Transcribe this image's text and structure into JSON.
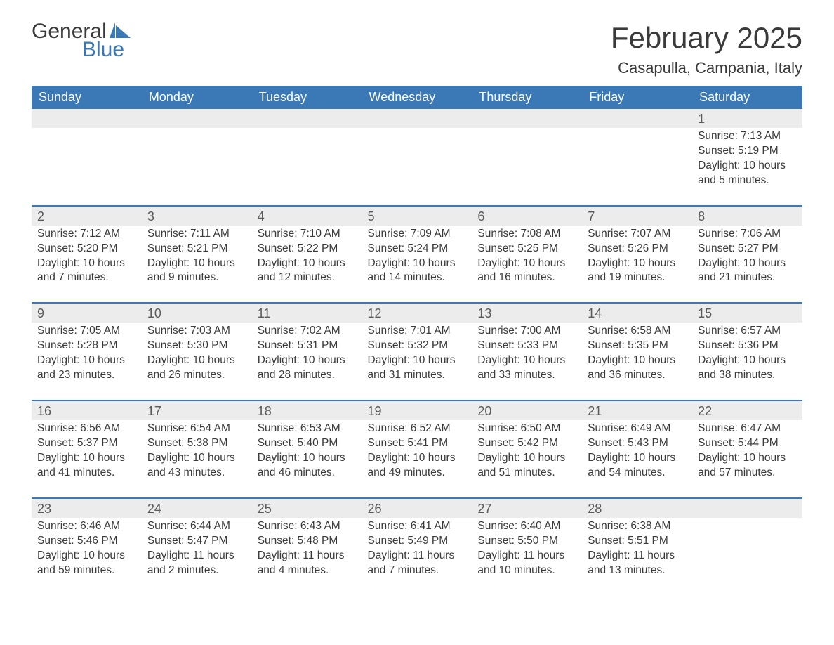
{
  "logo": {
    "general": "General",
    "blue": "Blue"
  },
  "title": "February 2025",
  "location": "Casapulla, Campania, Italy",
  "colors": {
    "header_bg": "#3a78b6",
    "header_text": "#ffffff",
    "daynum_bg": "#ececec",
    "week_border": "#3a78b6",
    "text": "#3a3a3a",
    "logo_blue": "#3a78b6"
  },
  "layout": {
    "cols": 7,
    "header_font_size": 18,
    "daynum_font_size": 18,
    "detail_font_size": 15.5,
    "title_font_size": 42,
    "location_font_size": 22
  },
  "weekdays": [
    "Sunday",
    "Monday",
    "Tuesday",
    "Wednesday",
    "Thursday",
    "Friday",
    "Saturday"
  ],
  "weeks": [
    {
      "days": [
        null,
        null,
        null,
        null,
        null,
        null,
        {
          "n": "1",
          "sunrise": "Sunrise: 7:13 AM",
          "sunset": "Sunset: 5:19 PM",
          "daylight": "Daylight: 10 hours and 5 minutes."
        }
      ]
    },
    {
      "days": [
        {
          "n": "2",
          "sunrise": "Sunrise: 7:12 AM",
          "sunset": "Sunset: 5:20 PM",
          "daylight": "Daylight: 10 hours and 7 minutes."
        },
        {
          "n": "3",
          "sunrise": "Sunrise: 7:11 AM",
          "sunset": "Sunset: 5:21 PM",
          "daylight": "Daylight: 10 hours and 9 minutes."
        },
        {
          "n": "4",
          "sunrise": "Sunrise: 7:10 AM",
          "sunset": "Sunset: 5:22 PM",
          "daylight": "Daylight: 10 hours and 12 minutes."
        },
        {
          "n": "5",
          "sunrise": "Sunrise: 7:09 AM",
          "sunset": "Sunset: 5:24 PM",
          "daylight": "Daylight: 10 hours and 14 minutes."
        },
        {
          "n": "6",
          "sunrise": "Sunrise: 7:08 AM",
          "sunset": "Sunset: 5:25 PM",
          "daylight": "Daylight: 10 hours and 16 minutes."
        },
        {
          "n": "7",
          "sunrise": "Sunrise: 7:07 AM",
          "sunset": "Sunset: 5:26 PM",
          "daylight": "Daylight: 10 hours and 19 minutes."
        },
        {
          "n": "8",
          "sunrise": "Sunrise: 7:06 AM",
          "sunset": "Sunset: 5:27 PM",
          "daylight": "Daylight: 10 hours and 21 minutes."
        }
      ]
    },
    {
      "days": [
        {
          "n": "9",
          "sunrise": "Sunrise: 7:05 AM",
          "sunset": "Sunset: 5:28 PM",
          "daylight": "Daylight: 10 hours and 23 minutes."
        },
        {
          "n": "10",
          "sunrise": "Sunrise: 7:03 AM",
          "sunset": "Sunset: 5:30 PM",
          "daylight": "Daylight: 10 hours and 26 minutes."
        },
        {
          "n": "11",
          "sunrise": "Sunrise: 7:02 AM",
          "sunset": "Sunset: 5:31 PM",
          "daylight": "Daylight: 10 hours and 28 minutes."
        },
        {
          "n": "12",
          "sunrise": "Sunrise: 7:01 AM",
          "sunset": "Sunset: 5:32 PM",
          "daylight": "Daylight: 10 hours and 31 minutes."
        },
        {
          "n": "13",
          "sunrise": "Sunrise: 7:00 AM",
          "sunset": "Sunset: 5:33 PM",
          "daylight": "Daylight: 10 hours and 33 minutes."
        },
        {
          "n": "14",
          "sunrise": "Sunrise: 6:58 AM",
          "sunset": "Sunset: 5:35 PM",
          "daylight": "Daylight: 10 hours and 36 minutes."
        },
        {
          "n": "15",
          "sunrise": "Sunrise: 6:57 AM",
          "sunset": "Sunset: 5:36 PM",
          "daylight": "Daylight: 10 hours and 38 minutes."
        }
      ]
    },
    {
      "days": [
        {
          "n": "16",
          "sunrise": "Sunrise: 6:56 AM",
          "sunset": "Sunset: 5:37 PM",
          "daylight": "Daylight: 10 hours and 41 minutes."
        },
        {
          "n": "17",
          "sunrise": "Sunrise: 6:54 AM",
          "sunset": "Sunset: 5:38 PM",
          "daylight": "Daylight: 10 hours and 43 minutes."
        },
        {
          "n": "18",
          "sunrise": "Sunrise: 6:53 AM",
          "sunset": "Sunset: 5:40 PM",
          "daylight": "Daylight: 10 hours and 46 minutes."
        },
        {
          "n": "19",
          "sunrise": "Sunrise: 6:52 AM",
          "sunset": "Sunset: 5:41 PM",
          "daylight": "Daylight: 10 hours and 49 minutes."
        },
        {
          "n": "20",
          "sunrise": "Sunrise: 6:50 AM",
          "sunset": "Sunset: 5:42 PM",
          "daylight": "Daylight: 10 hours and 51 minutes."
        },
        {
          "n": "21",
          "sunrise": "Sunrise: 6:49 AM",
          "sunset": "Sunset: 5:43 PM",
          "daylight": "Daylight: 10 hours and 54 minutes."
        },
        {
          "n": "22",
          "sunrise": "Sunrise: 6:47 AM",
          "sunset": "Sunset: 5:44 PM",
          "daylight": "Daylight: 10 hours and 57 minutes."
        }
      ]
    },
    {
      "days": [
        {
          "n": "23",
          "sunrise": "Sunrise: 6:46 AM",
          "sunset": "Sunset: 5:46 PM",
          "daylight": "Daylight: 10 hours and 59 minutes."
        },
        {
          "n": "24",
          "sunrise": "Sunrise: 6:44 AM",
          "sunset": "Sunset: 5:47 PM",
          "daylight": "Daylight: 11 hours and 2 minutes."
        },
        {
          "n": "25",
          "sunrise": "Sunrise: 6:43 AM",
          "sunset": "Sunset: 5:48 PM",
          "daylight": "Daylight: 11 hours and 4 minutes."
        },
        {
          "n": "26",
          "sunrise": "Sunrise: 6:41 AM",
          "sunset": "Sunset: 5:49 PM",
          "daylight": "Daylight: 11 hours and 7 minutes."
        },
        {
          "n": "27",
          "sunrise": "Sunrise: 6:40 AM",
          "sunset": "Sunset: 5:50 PM",
          "daylight": "Daylight: 11 hours and 10 minutes."
        },
        {
          "n": "28",
          "sunrise": "Sunrise: 6:38 AM",
          "sunset": "Sunset: 5:51 PM",
          "daylight": "Daylight: 11 hours and 13 minutes."
        },
        null
      ]
    }
  ]
}
